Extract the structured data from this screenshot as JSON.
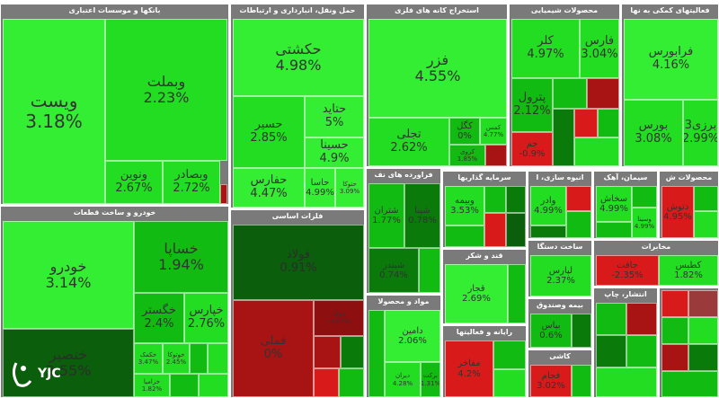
{
  "sectors": {
    "banks": "بانکها و موسسات اعتباری",
    "transport": "حمل ونقل، انبارداری و ارتباطات",
    "mining": "استخراج کانه های فلزی",
    "chemicals": "محصولات شیمیایی",
    "support": "فعالیتهای کمکی به نها",
    "auto": "خودرو و ساخت قطعات",
    "metals": "فلزات اساسی",
    "refining": "فراورده های نف",
    "cement": "سیمان، آهک",
    "pharma": "محصولات ش",
    "telecom": "مخابرات",
    "mass": "انبوه سازی، ا",
    "tools": "ساخت دستگا",
    "software": "انتشار، چاپ",
    "sugar": "قند و شکر",
    "foods": "مواد و محصولا",
    "retail": "رایانه و فعالیتها",
    "insurance": "بیمه وصندوق",
    "ceramics": "کاشی",
    "investment": "سرمایه گذاریها"
  },
  "tiles": {
    "vbsat": {
      "name": "ویست",
      "pct": "3.18%"
    },
    "vbmelat": {
      "name": "وبملت",
      "pct": "2.23%"
    },
    "vnovin": {
      "name": "ونوین",
      "pct": "2.67%"
    },
    "vbsader": {
      "name": "وبصادر",
      "pct": "2.72%"
    },
    "hkeshti": {
      "name": "حکشتی",
      "pct": "4.98%"
    },
    "hatid": {
      "name": "حتاید",
      "pct": "5%"
    },
    "hsir": {
      "name": "حسیر",
      "pct": "2.85%"
    },
    "hsina": {
      "name": "حسینا",
      "pct": "4.9%"
    },
    "hfars": {
      "name": "حفارس",
      "pct": "4.47%"
    },
    "hasa": {
      "name": "حاسا",
      "pct": "4.99%"
    },
    "htoka": {
      "name": "حتوکا",
      "pct": "3.09%"
    },
    "fazar": {
      "name": "فزر",
      "pct": "4.55%"
    },
    "tajali": {
      "name": "تجلی",
      "pct": "2.62%"
    },
    "kgol": {
      "name": "کگل",
      "pct": "0%"
    },
    "kmas": {
      "name": "کمس",
      "pct": "4.77%"
    },
    "kroy": {
      "name": "کروی",
      "pct": "1.85%"
    },
    "kler": {
      "name": "کلر",
      "pct": "4.97%"
    },
    "fars": {
      "name": "فارس",
      "pct": "3.04%"
    },
    "petrol": {
      "name": "پترول",
      "pct": "2.12%"
    },
    "japa": {
      "name": "جم",
      "pct": "-0.9%"
    },
    "fbours": {
      "name": "فرابورس",
      "pct": "4.16%"
    },
    "bours": {
      "name": "بورس",
      "pct": "3.08%"
    },
    "barzi": {
      "name": "3برزی",
      "pct": "2.99%"
    },
    "khodro": {
      "name": "خودرو",
      "pct": "3.14%"
    },
    "khsapa": {
      "name": "خساپا",
      "pct": "1.94%"
    },
    "khgostar": {
      "name": "خگستر",
      "pct": "2.4%"
    },
    "khiaras": {
      "name": "خپارس",
      "pct": "2.76%"
    },
    "khanser": {
      "name": "خنصیر",
      "pct": "3.55%"
    },
    "khchakma": {
      "name": "خکمک",
      "pct": "3.47%"
    },
    "khoshka": {
      "name": "خوتوکا",
      "pct": "2.45%"
    },
    "khzamia": {
      "name": "خزامیا",
      "pct": "1.82%"
    },
    "fmlli": {
      "name": "فملی",
      "pct": "0%"
    },
    "foolad": {
      "name": "فولاد",
      "pct": "0.91%"
    },
    "fooladz": {
      "name": "فولاد",
      "pct": "-0.67%"
    },
    "shestran": {
      "name": "شتران",
      "pct": "1.77%"
    },
    "shpna": {
      "name": "شپنا",
      "pct": "0.78%"
    },
    "shbandar": {
      "name": "شبندر",
      "pct": "0.74%"
    },
    "vbime": {
      "name": "وبیمه",
      "pct": "3.53%"
    },
    "vsina": {
      "name": "وسینا",
      "pct": "4.99%"
    },
    "sakhash": {
      "name": "سخاش",
      "pct": "4.99%"
    },
    "dtosh": {
      "name": "دتوش",
      "pct": "4.95%"
    },
    "vadr": {
      "name": "وادر",
      "pct": "4.99%"
    },
    "gajaf": {
      "name": "جافت",
      "pct": "-2.35%"
    },
    "kates": {
      "name": "کطبس",
      "pct": "1.82%"
    },
    "lpars": {
      "name": "لپارس",
      "pct": "2.37%"
    },
    "ghajar": {
      "name": "قجار",
      "pct": "2.69%"
    },
    "damin": {
      "name": "دامین",
      "pct": "2.06%"
    },
    "mafakher": {
      "name": "مفاخر",
      "pct": "4.2%"
    },
    "bpas": {
      "name": "بپاس",
      "pct": "0.6%"
    },
    "fajam": {
      "name": "فجام",
      "pct": "3.02%"
    },
    "brekat": {
      "name": "برکت",
      "pct": "1.31%"
    },
    "dirban": {
      "name": "دیران",
      "pct": "4.28%"
    }
  },
  "logo": "YJC",
  "colors": {
    "up_strong": "#33ee33",
    "up": "#11bb11",
    "flat": "#0b5e0b",
    "down": "#d91a1a"
  }
}
